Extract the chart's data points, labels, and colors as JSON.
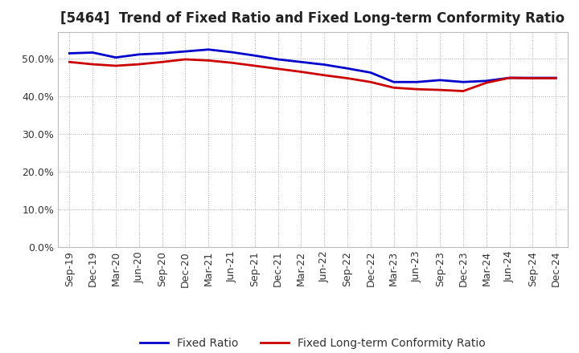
{
  "title": "[5464]  Trend of Fixed Ratio and Fixed Long-term Conformity Ratio",
  "x_labels": [
    "Sep-19",
    "Dec-19",
    "Mar-20",
    "Jun-20",
    "Sep-20",
    "Dec-20",
    "Mar-21",
    "Jun-21",
    "Sep-21",
    "Dec-21",
    "Mar-22",
    "Jun-22",
    "Sep-22",
    "Dec-22",
    "Mar-23",
    "Jun-23",
    "Sep-23",
    "Dec-23",
    "Mar-24",
    "Jun-24",
    "Sep-24",
    "Dec-24"
  ],
  "fixed_ratio": [
    0.513,
    0.515,
    0.502,
    0.51,
    0.513,
    0.518,
    0.523,
    0.516,
    0.507,
    0.497,
    0.49,
    0.483,
    0.473,
    0.462,
    0.437,
    0.437,
    0.442,
    0.437,
    0.44,
    0.448,
    0.448,
    0.448
  ],
  "fixed_lt_ratio": [
    0.49,
    0.484,
    0.48,
    0.484,
    0.49,
    0.497,
    0.494,
    0.488,
    0.48,
    0.472,
    0.464,
    0.455,
    0.447,
    0.437,
    0.422,
    0.418,
    0.416,
    0.413,
    0.435,
    0.448,
    0.447,
    0.447
  ],
  "fixed_ratio_color": "#0000cc",
  "fixed_lt_ratio_color": "#cc0000",
  "ylim": [
    0.0,
    0.57
  ],
  "yticks": [
    0.0,
    0.1,
    0.2,
    0.3,
    0.4,
    0.5
  ],
  "background_color": "#ffffff",
  "grid_color": "#aaaaaa",
  "title_fontsize": 12,
  "legend_fontsize": 10,
  "tick_fontsize": 9,
  "line_width": 2.0,
  "fixed_ratio_label": "Fixed Ratio",
  "fixed_lt_ratio_label": "Fixed Long-term Conformity Ratio"
}
